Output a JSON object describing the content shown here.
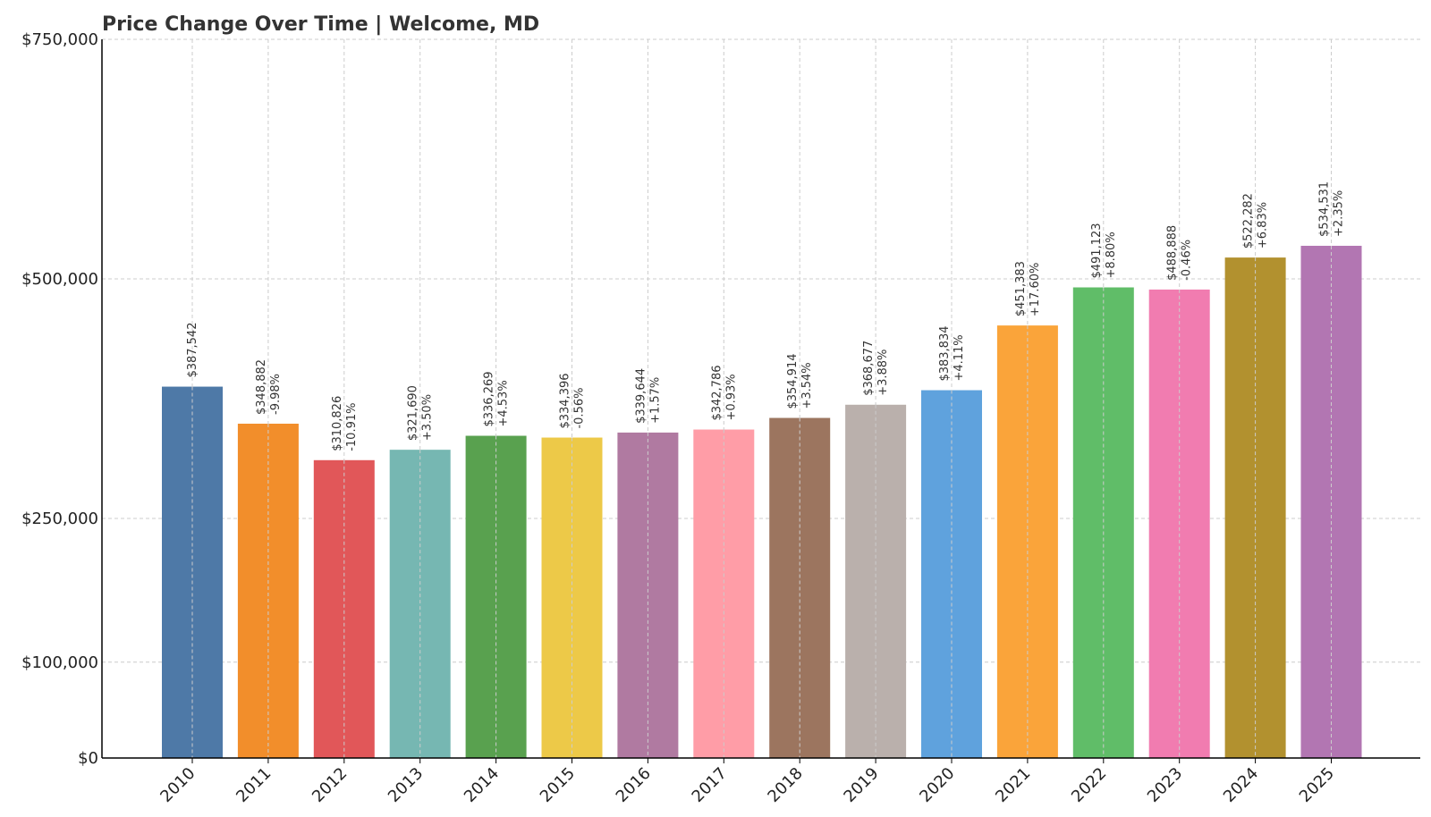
{
  "chart_data": {
    "type": "bar",
    "title": "Price Change Over Time | Welcome, MD",
    "xlabel": "",
    "ylabel": "",
    "ylim": [
      0,
      750000
    ],
    "yticks": [
      {
        "value": 0,
        "label": "$0"
      },
      {
        "value": 100000,
        "label": "$100,000"
      },
      {
        "value": 250000,
        "label": "$250,000"
      },
      {
        "value": 500000,
        "label": "$500,000"
      },
      {
        "value": 750000,
        "label": "$750,000"
      }
    ],
    "grid": true,
    "categories": [
      "2010",
      "2011",
      "2012",
      "2013",
      "2014",
      "2015",
      "2016",
      "2017",
      "2018",
      "2019",
      "2020",
      "2021",
      "2022",
      "2023",
      "2024",
      "2025"
    ],
    "values": [
      387542,
      348882,
      310826,
      321690,
      336269,
      334396,
      339644,
      342786,
      354914,
      368677,
      383834,
      451383,
      491123,
      488888,
      522282,
      534531
    ],
    "value_labels": [
      "$387,542",
      "$348,882",
      "$310,826",
      "$321,690",
      "$336,269",
      "$334,396",
      "$339,644",
      "$342,786",
      "$354,914",
      "$368,677",
      "$383,834",
      "$451,383",
      "$491,123",
      "$488,888",
      "$522,282",
      "$534,531"
    ],
    "change_labels": [
      "",
      "-9.98%",
      "-10.91%",
      "+3.50%",
      "+4.53%",
      "-0.56%",
      "+1.57%",
      "+0.93%",
      "+3.54%",
      "+3.88%",
      "+4.11%",
      "+17.60%",
      "+8.80%",
      "-0.46%",
      "+6.83%",
      "+2.35%"
    ],
    "colors": [
      "#4e79a7",
      "#f28e2b",
      "#e15759",
      "#76b7b2",
      "#59a14f",
      "#edc948",
      "#b07aa1",
      "#ff9da7",
      "#9c755f",
      "#bab0ac",
      "#5fa2dd",
      "#faa43a",
      "#60bd68",
      "#f17cb0",
      "#b2912f",
      "#b276b2"
    ]
  }
}
